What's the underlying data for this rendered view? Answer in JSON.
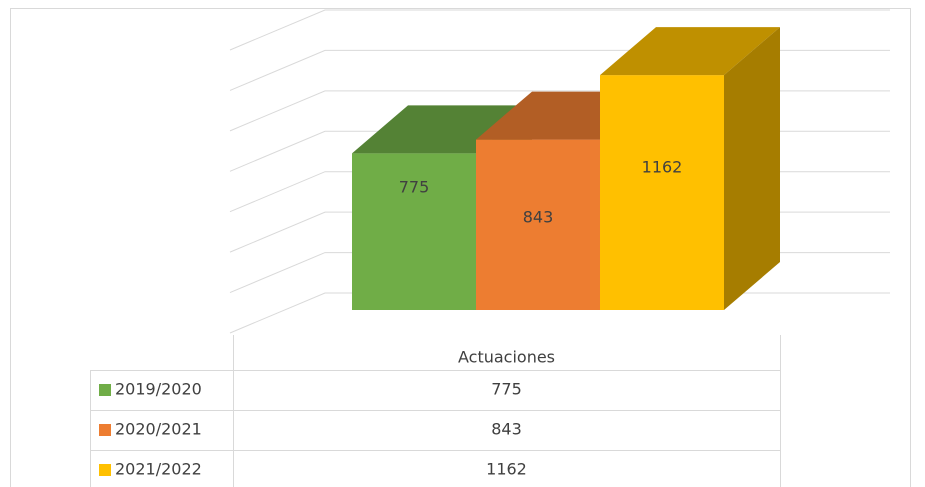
{
  "chart_data": {
    "type": "bar3d",
    "categories": [
      "Actuaciones"
    ],
    "series": [
      {
        "name": "2019/2020",
        "color": "#70ad47",
        "values": [
          775
        ]
      },
      {
        "name": "2020/2021",
        "color": "#ed7d31",
        "values": [
          843
        ]
      },
      {
        "name": "2021/2022",
        "color": "#ffc000",
        "values": [
          1162
        ]
      }
    ],
    "ylim": [
      0,
      1400
    ],
    "yticks": [
      0,
      200,
      400,
      600,
      800,
      1000,
      1200,
      1400
    ],
    "grid": true,
    "data_table": true
  }
}
